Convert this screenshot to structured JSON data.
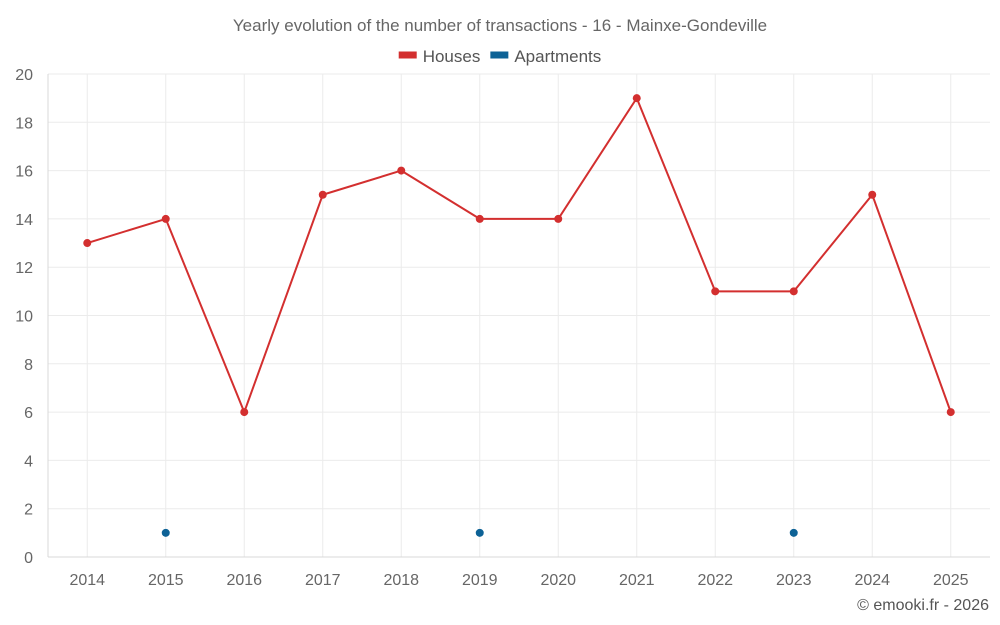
{
  "chart_data": {
    "type": "line",
    "title": "Yearly evolution of the number of transactions - 16 - Mainxe-Gondeville",
    "categories": [
      "2014",
      "2015",
      "2016",
      "2017",
      "2018",
      "2019",
      "2020",
      "2021",
      "2022",
      "2023",
      "2024",
      "2025"
    ],
    "series": [
      {
        "name": "Houses",
        "color": "#d32f2f",
        "values": [
          13,
          14,
          6,
          15,
          16,
          14,
          14,
          19,
          11,
          11,
          15,
          6
        ]
      },
      {
        "name": "Apartments",
        "color": "#0d6296",
        "values": [
          null,
          1,
          null,
          null,
          null,
          1,
          null,
          null,
          null,
          1,
          null,
          null
        ]
      }
    ],
    "ylim": [
      0,
      20
    ],
    "yticks": [
      0,
      2,
      4,
      6,
      8,
      10,
      12,
      14,
      16,
      18,
      20
    ],
    "grid": true,
    "legend": "top-center"
  },
  "credit": "© emooki.fr - 2026"
}
